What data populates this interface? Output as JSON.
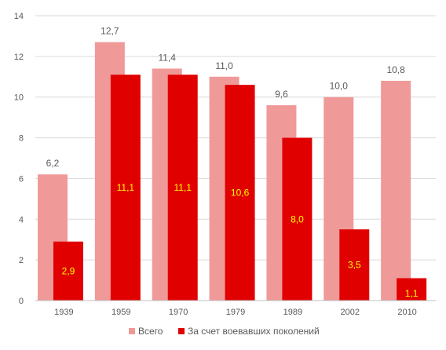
{
  "chart_data": {
    "type": "bar",
    "categories": [
      "1939",
      "1959",
      "1970",
      "1979",
      "1989",
      "2002",
      "2010"
    ],
    "series": [
      {
        "name": "Всего",
        "values": [
          6.2,
          12.7,
          11.4,
          11.0,
          9.6,
          10.0,
          10.8
        ],
        "labels": [
          "6,2",
          "12,7",
          "11,4",
          "11,0",
          "9,6",
          "10,0",
          "10,8"
        ],
        "color": "#f09999"
      },
      {
        "name": "За счет воевавших поколений",
        "values": [
          2.9,
          11.1,
          11.1,
          10.6,
          8.0,
          3.5,
          1.1
        ],
        "labels": [
          "2,9",
          "11,1",
          "11,1",
          "10,6",
          "8,0",
          "3,5",
          "1,1"
        ],
        "color": "#e00000"
      }
    ],
    "ylim": [
      0,
      14
    ],
    "yticks": [
      "0",
      "2",
      "4",
      "6",
      "8",
      "10",
      "12",
      "14"
    ],
    "ytick_values": [
      0,
      2,
      4,
      6,
      8,
      10,
      12,
      14
    ],
    "grid": true,
    "legend_position": "bottom",
    "label_color_series2": "#ffff00",
    "gridline_color": "#d9d9d9"
  }
}
